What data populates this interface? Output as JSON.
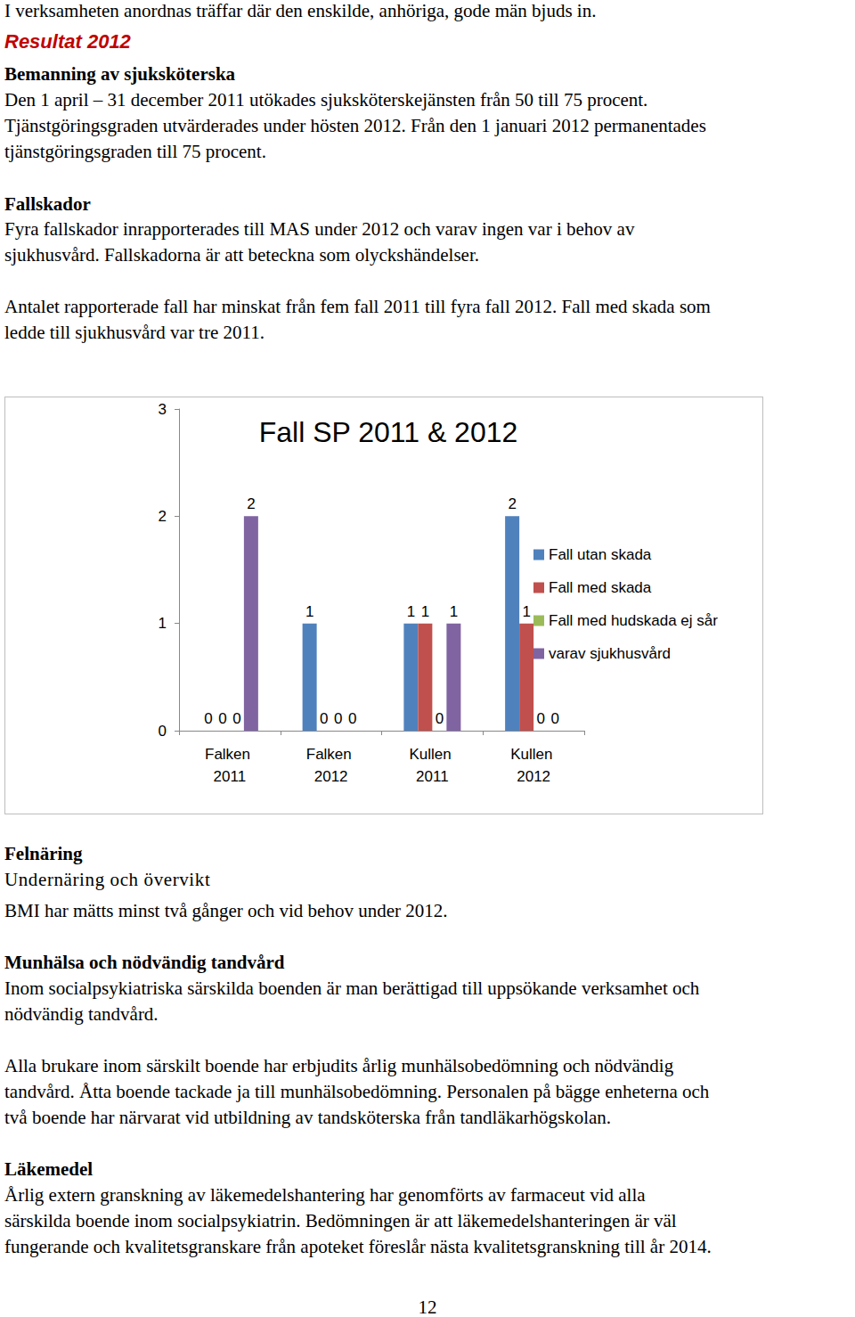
{
  "page": {
    "intro": "I verksamheten anordnas träffar där den enskilde, anhöriga, gode män bjuds in.",
    "result_title": "Resultat 2012",
    "sections_before_chart": [
      {
        "heading": "Bemanning av sjuksköterska",
        "paragraphs": [
          [
            "Den 1 april – 31 december 2011 utökades sjuksköterskejänsten från 50 till 75 procent.",
            "Tjänstgöringsgraden utvärderades under hösten 2012. Från den 1 januari 2012 permanentades",
            "tjänstgöringsgraden till 75 procent."
          ]
        ]
      },
      {
        "heading": "Fallskador",
        "paragraphs": [
          [
            "Fyra fallskador inrapporterades till MAS under 2012 och varav ingen var i behov av",
            "sjukhusvård. Fallskadorna är att beteckna som olyckshändelser."
          ],
          [
            "Antalet rapporterade fall har minskat från fem fall 2011 till fyra fall 2012. Fall med skada som",
            "ledde till sjukhusvård var tre 2011."
          ]
        ]
      }
    ],
    "sections_after_chart": [
      {
        "heading": "Felnäring",
        "subheading": "Undernäring och övervikt",
        "paragraphs": [
          [
            "BMI har mätts minst två gånger och vid behov under 2012."
          ]
        ]
      },
      {
        "heading": "Munhälsa och nödvändig tandvård",
        "paragraphs": [
          [
            "Inom socialpsykiatriska särskilda boenden är man berättigad till uppsökande verksamhet och",
            "nödvändig tandvård."
          ],
          [
            "Alla brukare inom särskilt boende har erbjudits årlig munhälsobedömning och nödvändig",
            "tandvård. Åtta boende tackade ja till munhälsobedömning. Personalen på bägge enheterna och",
            "två boende har närvarat vid utbildning av tandsköterska från tandläkarhögskolan."
          ]
        ]
      },
      {
        "heading": "Läkemedel",
        "paragraphs": [
          [
            "Årlig extern granskning av läkemedelshantering har genomförts av farmaceut vid alla",
            "särskilda boende inom socialpsykiatrin. Bedömningen är att läkemedelshanteringen är väl",
            "fungerande och kvalitetsgranskare från apoteket föreslår nästa kvalitetsgranskning till år 2014."
          ]
        ]
      }
    ],
    "page_number": "12"
  },
  "chart_data": {
    "type": "bar",
    "title": "Fall SP 2011 & 2012",
    "categories": [
      "Falken 2011",
      "Falken 2012",
      "Kullen 2011",
      "Kullen 2012"
    ],
    "series": [
      {
        "name": "Fall utan skada",
        "color": "#4f81bd",
        "values": [
          0,
          1,
          1,
          2
        ]
      },
      {
        "name": "Fall med skada",
        "color": "#c0504d",
        "values": [
          0,
          0,
          1,
          1
        ]
      },
      {
        "name": "Fall med hudskada ej sår",
        "color": "#9bbb59",
        "values": [
          0,
          0,
          0,
          0
        ]
      },
      {
        "name": "varav sjukhusvård",
        "color": "#8064a2",
        "values": [
          2,
          0,
          1,
          0
        ]
      }
    ],
    "ylim": [
      0,
      3
    ],
    "yticks": [
      0,
      1,
      2,
      3
    ],
    "grid": false,
    "legend": "right",
    "data_labels": true
  }
}
